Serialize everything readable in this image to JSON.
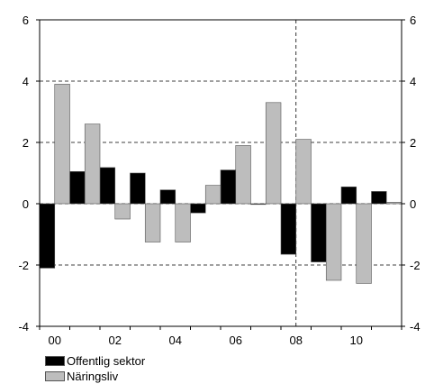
{
  "chart_data": {
    "type": "bar",
    "x": [
      2000,
      2001,
      2002,
      2003,
      2004,
      2005,
      2006,
      2007,
      2008,
      2009,
      2010,
      2011
    ],
    "xtick_labels": [
      "00",
      "02",
      "04",
      "06",
      "08",
      "10"
    ],
    "xtick_years": [
      2000,
      2002,
      2004,
      2006,
      2008,
      2010
    ],
    "ylim": [
      -4,
      6
    ],
    "yticks_left": [
      "6",
      "4",
      "2",
      "0",
      "-2",
      "-4"
    ],
    "yticks_right": [
      "6",
      "4",
      "2",
      "0",
      "-2",
      "-4"
    ],
    "ytick_values": [
      6,
      4,
      2,
      0,
      -2,
      -4
    ],
    "vertical_marker_x": 2008.5,
    "grid": "horizontal dashed",
    "legend_position": "bottom-left",
    "series": [
      {
        "name": "Offentlig sektor",
        "color": "#000000",
        "values": [
          -2.1,
          1.05,
          1.18,
          1.0,
          0.45,
          -0.3,
          1.1,
          -0.02,
          -1.65,
          -1.9,
          0.55,
          0.4
        ]
      },
      {
        "name": "Näringsliv",
        "color": "#bdbdbd",
        "values": [
          3.9,
          2.6,
          -0.5,
          -1.25,
          -1.25,
          0.6,
          1.9,
          3.3,
          2.1,
          -2.5,
          -2.6,
          0.05
        ]
      }
    ]
  }
}
